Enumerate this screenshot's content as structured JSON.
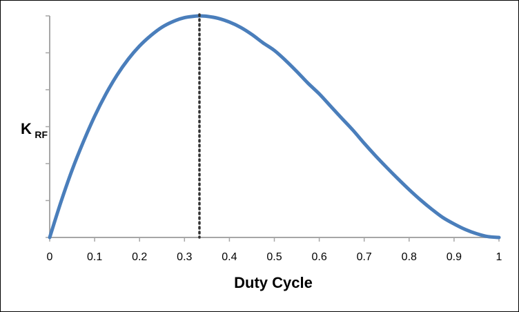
{
  "chart_data": {
    "type": "line",
    "title": "",
    "xlabel": "Duty Cycle",
    "ylabel": "K",
    "ylabel_subscript": "RF",
    "xlim": [
      0,
      1
    ],
    "xticks": [
      "0",
      "0.1",
      "0.2",
      "0.3",
      "0.4",
      "0.5",
      "0.6",
      "0.7",
      "0.8",
      "0.9",
      "1"
    ],
    "ylim": [
      0,
      1
    ],
    "y_tick_labels_shown": false,
    "grid": false,
    "legend": "none",
    "series": [
      {
        "color": "#4a7ebb",
        "x": [
          0,
          0.025,
          0.05,
          0.075,
          0.1,
          0.125,
          0.15,
          0.175,
          0.2,
          0.225,
          0.25,
          0.275,
          0.3,
          0.325,
          0.3333,
          0.35,
          0.375,
          0.4,
          0.425,
          0.45,
          0.475,
          0.5,
          0.525,
          0.55,
          0.575,
          0.6,
          0.625,
          0.65,
          0.675,
          0.7,
          0.725,
          0.75,
          0.775,
          0.8,
          0.825,
          0.85,
          0.875,
          0.9,
          0.925,
          0.95,
          0.975,
          1
        ],
        "y": [
          0,
          0.16,
          0.305,
          0.432,
          0.547,
          0.647,
          0.733,
          0.805,
          0.864,
          0.911,
          0.949,
          0.975,
          0.992,
          0.999,
          1.0,
          0.998,
          0.989,
          0.972,
          0.948,
          0.916,
          0.878,
          0.844,
          0.799,
          0.749,
          0.696,
          0.648,
          0.593,
          0.538,
          0.484,
          0.425,
          0.369,
          0.316,
          0.265,
          0.216,
          0.17,
          0.128,
          0.09,
          0.061,
          0.036,
          0.017,
          0.004,
          0
        ]
      }
    ],
    "reference_line": {
      "x": 0.3333,
      "style": "dotted",
      "color": "#333333"
    },
    "axis_color": "#a6a6a6"
  }
}
